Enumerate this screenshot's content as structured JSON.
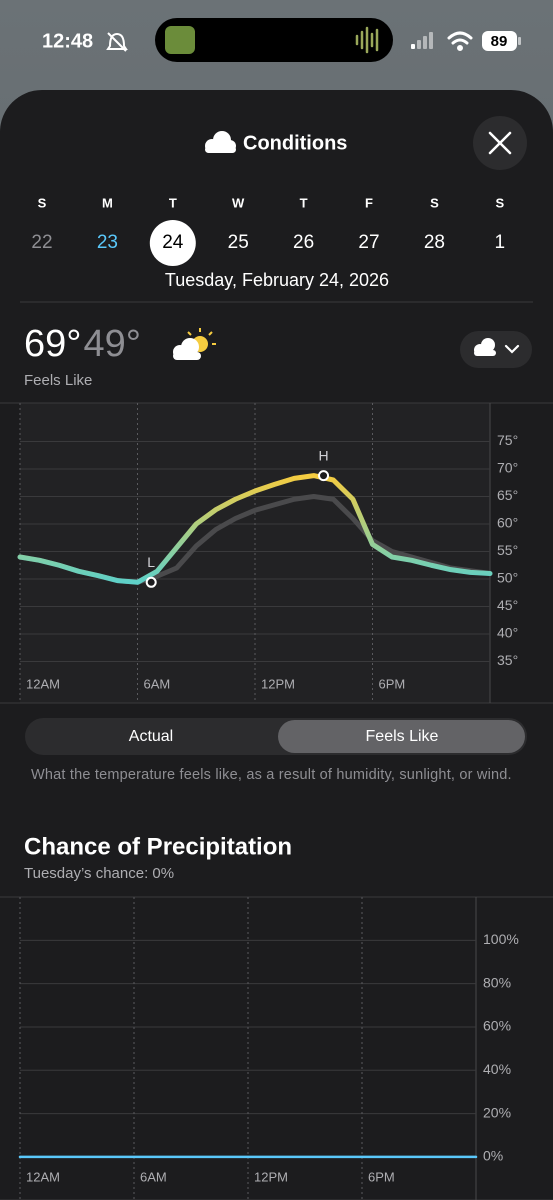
{
  "status_bar": {
    "time": "12:48",
    "battery": "89"
  },
  "header": {
    "title": "Conditions"
  },
  "week": {
    "selected_index": 2,
    "today_index": 1,
    "days": [
      {
        "letter": "S",
        "date": "22"
      },
      {
        "letter": "M",
        "date": "23"
      },
      {
        "letter": "T",
        "date": "24"
      },
      {
        "letter": "W",
        "date": "25"
      },
      {
        "letter": "T",
        "date": "26"
      },
      {
        "letter": "F",
        "date": "27"
      },
      {
        "letter": "S",
        "date": "28"
      },
      {
        "letter": "S",
        "date": "1"
      }
    ]
  },
  "selected_date": "Tuesday, February 24, 2026",
  "summary": {
    "high": "69°",
    "low": "49°",
    "caption": "Feels Like"
  },
  "temperature_chart": {
    "type": "line",
    "x": [
      0,
      1,
      2,
      3,
      4,
      5,
      6,
      7,
      8,
      9,
      10,
      11,
      12,
      13,
      14,
      15,
      16,
      17,
      18,
      19,
      20,
      21,
      22,
      23,
      24
    ],
    "xlim": [
      0,
      24
    ],
    "xticks": [
      {
        "value": 0,
        "label": "12AM"
      },
      {
        "value": 6,
        "label": "6AM"
      },
      {
        "value": 12,
        "label": "12PM"
      },
      {
        "value": 18,
        "label": "6PM"
      }
    ],
    "ylim": [
      28,
      82
    ],
    "yticks": [
      {
        "value": 75,
        "label": "75°"
      },
      {
        "value": 70,
        "label": "70°"
      },
      {
        "value": 65,
        "label": "65°"
      },
      {
        "value": 60,
        "label": "60°"
      },
      {
        "value": 55,
        "label": "55°"
      },
      {
        "value": 50,
        "label": "50°"
      },
      {
        "value": 45,
        "label": "45°"
      },
      {
        "value": 40,
        "label": "40°"
      },
      {
        "value": 35,
        "label": "35°"
      }
    ],
    "grid": true,
    "selected_series": 1,
    "series": [
      {
        "name": "Actual",
        "color": "#4a4a4c",
        "values": [
          54,
          53.4,
          52.5,
          51.4,
          50.6,
          49.7,
          49.4,
          50.5,
          52,
          56,
          59,
          61,
          62.5,
          63.5,
          64.5,
          65,
          64.5,
          61,
          57,
          55,
          54,
          53,
          52,
          51.5,
          51
        ]
      },
      {
        "name": "Feels Like",
        "color": "#5ed0c8",
        "color_high": "#f5cc40",
        "values": [
          54,
          53.4,
          52.5,
          51.4,
          50.6,
          49.7,
          49.4,
          51.4,
          55.7,
          60,
          62.6,
          64.5,
          66,
          67.2,
          68.3,
          68.8,
          68,
          64.5,
          56.3,
          54,
          53.4,
          52.5,
          51.7,
          51.2,
          51
        ]
      }
    ],
    "annotations": [
      {
        "label": "L",
        "x": 6.7,
        "y": 49.4
      },
      {
        "label": "H",
        "x": 15.5,
        "y": 68.8
      }
    ]
  },
  "description": "What the temperature feels like, as a result of humidity, sunlight, or wind.",
  "precipitation": {
    "title": "Chance of Precipitation",
    "subtitle": "Tuesday’s chance: 0%",
    "chart": {
      "type": "line",
      "x": [
        0,
        1,
        2,
        3,
        4,
        5,
        6,
        7,
        8,
        9,
        10,
        11,
        12,
        13,
        14,
        15,
        16,
        17,
        18,
        19,
        20,
        21,
        22,
        23,
        24
      ],
      "xlim": [
        0,
        24
      ],
      "xticks": [
        {
          "value": 0,
          "label": "12AM"
        },
        {
          "value": 6,
          "label": "6AM"
        },
        {
          "value": 12,
          "label": "12PM"
        },
        {
          "value": 18,
          "label": "6PM"
        }
      ],
      "ylim": [
        -18.5,
        120
      ],
      "yticks": [
        {
          "value": 100,
          "label": "100%"
        },
        {
          "value": 80,
          "label": "80%"
        },
        {
          "value": 60,
          "label": "60%"
        },
        {
          "value": 40,
          "label": "40%"
        },
        {
          "value": 20,
          "label": "20%"
        },
        {
          "value": 0,
          "label": "0%"
        }
      ],
      "grid": true,
      "series": [
        {
          "color": "#5ac8fa",
          "values": [
            0,
            0,
            0,
            0,
            0,
            0,
            0,
            0,
            0,
            0,
            0,
            0,
            0,
            0,
            0,
            0,
            0,
            0,
            0,
            0,
            0,
            0,
            0,
            0,
            0
          ]
        }
      ]
    }
  }
}
